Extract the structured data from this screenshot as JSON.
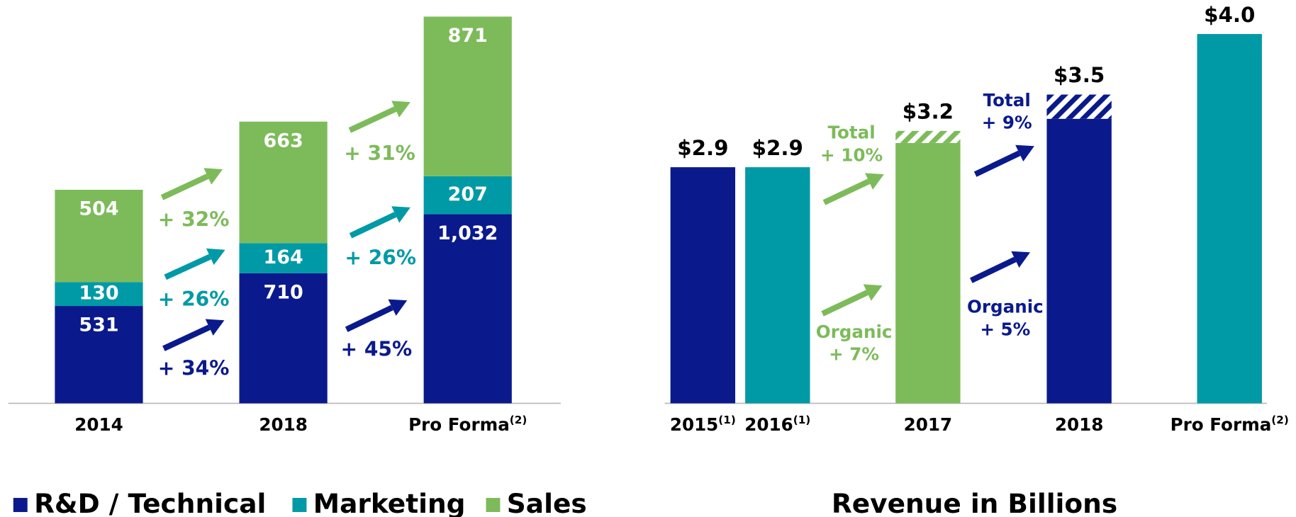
{
  "charts": [
    {
      "chart_data": {
        "type": "stacked-bar",
        "categories": [
          "2014",
          "2018",
          "Pro Forma"
        ],
        "category_notes": [
          null,
          null,
          "(2)"
        ],
        "series": [
          {
            "name": "R&D / Technical",
            "color": "#0a1a8c",
            "values": [
              531,
              710,
              1032
            ],
            "value_labels": [
              "531",
              "710",
              "1,032"
            ],
            "growth": [
              "+ 34%",
              "+ 45%"
            ]
          },
          {
            "name": "Marketing",
            "color": "#009aa6",
            "values": [
              130,
              164,
              207
            ],
            "growth": [
              "+ 26%",
              "+ 26%"
            ]
          },
          {
            "name": "Sales",
            "color": "#7dbb5a",
            "values": [
              504,
              663,
              871
            ],
            "growth": [
              "+ 32%",
              "+ 31%"
            ]
          }
        ],
        "legend": "bottom"
      }
    },
    {
      "chart_data": {
        "type": "bar",
        "title": "Revenue in Billions",
        "categories": [
          "2015",
          "2016",
          "2017",
          "2018",
          "Pro Forma"
        ],
        "category_notes": [
          "(1)",
          "(1)",
          null,
          null,
          "(2)"
        ],
        "values": [
          2.9,
          2.9,
          3.2,
          3.5,
          4.0
        ],
        "value_labels": [
          "$2.9",
          "$2.9",
          "$3.2",
          "$3.5",
          "$4.0"
        ],
        "organic_values": [
          null,
          null,
          3.1,
          3.3,
          null
        ],
        "colors": [
          "#0a1a8c",
          "#009aa6",
          "#7dbb5a",
          "#0a1a8c",
          "#009aa6"
        ],
        "ylim": [
          0.95,
          4.0
        ],
        "annotations": [
          {
            "label": "Total",
            "value_label": "+ 10%",
            "color": "#7dbb5a"
          },
          {
            "label": "Organic",
            "value_label": "+ 7%",
            "color": "#7dbb5a"
          },
          {
            "label": "Total",
            "value_label": "+ 9%",
            "color": "#0a1a8c"
          },
          {
            "label": "Organic",
            "value_label": "+ 5%",
            "color": "#0a1a8c"
          }
        ]
      }
    }
  ]
}
